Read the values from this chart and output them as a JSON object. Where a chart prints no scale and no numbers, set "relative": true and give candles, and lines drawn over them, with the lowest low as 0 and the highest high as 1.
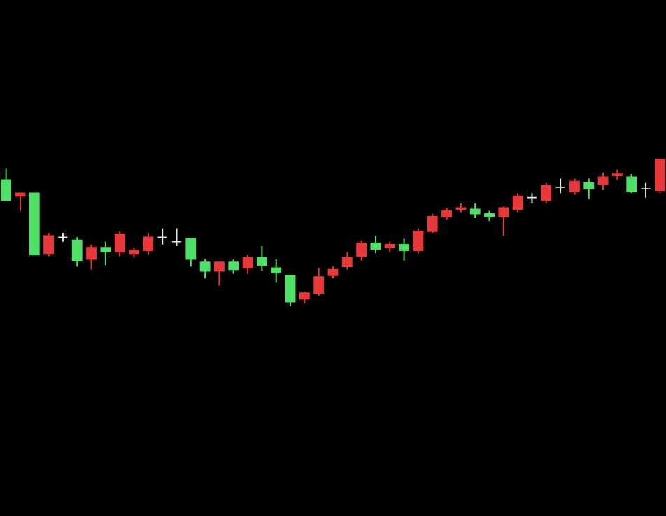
{
  "chart_data": {
    "type": "candlestick",
    "relative": true,
    "categories": [
      null,
      null,
      null,
      null,
      null,
      null,
      null,
      null,
      null,
      null,
      null,
      null,
      null,
      null,
      null,
      null,
      null,
      null,
      null,
      null,
      null,
      null,
      null,
      null,
      null,
      null,
      null,
      null,
      null,
      null,
      null,
      null,
      null,
      null,
      null,
      null,
      null,
      null,
      null,
      null,
      null,
      null,
      null,
      null,
      null,
      null,
      null
    ],
    "ohlc": [
      [
        0.86,
        0.94,
        0.72,
        0.72
      ],
      [
        0.75,
        0.77,
        0.65,
        0.77
      ],
      [
        0.77,
        0.77,
        0.35,
        0.35
      ],
      [
        0.36,
        0.5,
        0.34,
        0.48
      ],
      [
        0.47,
        0.5,
        0.44,
        0.47
      ],
      [
        0.45,
        0.47,
        0.27,
        0.31
      ],
      [
        0.32,
        0.42,
        0.25,
        0.4
      ],
      [
        0.4,
        0.44,
        0.28,
        0.37
      ],
      [
        0.37,
        0.51,
        0.34,
        0.49
      ],
      [
        0.36,
        0.4,
        0.33,
        0.38
      ],
      [
        0.38,
        0.5,
        0.35,
        0.47
      ],
      [
        0.47,
        0.53,
        0.42,
        0.47
      ],
      [
        0.44,
        0.53,
        0.41,
        0.44
      ],
      [
        0.46,
        0.46,
        0.27,
        0.32
      ],
      [
        0.3,
        0.32,
        0.19,
        0.24
      ],
      [
        0.24,
        0.3,
        0.14,
        0.3
      ],
      [
        0.3,
        0.32,
        0.22,
        0.25
      ],
      [
        0.26,
        0.35,
        0.22,
        0.33
      ],
      [
        0.33,
        0.41,
        0.24,
        0.28
      ],
      [
        0.26,
        0.32,
        0.16,
        0.23
      ],
      [
        0.21,
        0.21,
        0.0,
        0.03
      ],
      [
        0.05,
        0.1,
        0.02,
        0.09
      ],
      [
        0.09,
        0.26,
        0.07,
        0.2
      ],
      [
        0.21,
        0.27,
        0.19,
        0.25
      ],
      [
        0.27,
        0.37,
        0.25,
        0.33
      ],
      [
        0.34,
        0.45,
        0.31,
        0.43
      ],
      [
        0.43,
        0.48,
        0.36,
        0.39
      ],
      [
        0.4,
        0.44,
        0.37,
        0.42
      ],
      [
        0.42,
        0.46,
        0.31,
        0.38
      ],
      [
        0.38,
        0.53,
        0.36,
        0.51
      ],
      [
        0.51,
        0.63,
        0.5,
        0.61
      ],
      [
        0.61,
        0.67,
        0.59,
        0.65
      ],
      [
        0.66,
        0.7,
        0.64,
        0.67
      ],
      [
        0.66,
        0.7,
        0.6,
        0.63
      ],
      [
        0.63,
        0.65,
        0.58,
        0.61
      ],
      [
        0.61,
        0.68,
        0.48,
        0.67
      ],
      [
        0.66,
        0.77,
        0.64,
        0.75
      ],
      [
        0.74,
        0.77,
        0.7,
        0.74
      ],
      [
        0.72,
        0.84,
        0.7,
        0.82
      ],
      [
        0.81,
        0.87,
        0.77,
        0.81
      ],
      [
        0.78,
        0.87,
        0.76,
        0.85
      ],
      [
        0.84,
        0.87,
        0.73,
        0.8
      ],
      [
        0.83,
        0.91,
        0.79,
        0.88
      ],
      [
        0.89,
        0.93,
        0.86,
        0.9
      ],
      [
        0.88,
        0.9,
        0.77,
        0.78
      ],
      [
        0.8,
        0.84,
        0.74,
        0.8
      ],
      [
        0.79,
        1.0,
        0.77,
        1.0
      ]
    ],
    "colors": [
      "#4fe067",
      "#e8383a",
      "#4fe067",
      "#e8383a",
      "#e0f0e0",
      "#4fe067",
      "#e8383a",
      "#4fe067",
      "#e8383a",
      "#e8383a",
      "#e8383a",
      "#e0f0e0",
      "#e0f0e0",
      "#4fe067",
      "#4fe067",
      "#e8383a",
      "#4fe067",
      "#e8383a",
      "#4fe067",
      "#4fe067",
      "#4fe067",
      "#e8383a",
      "#e8383a",
      "#e8383a",
      "#e8383a",
      "#e8383a",
      "#4fe067",
      "#e8383a",
      "#4fe067",
      "#e8383a",
      "#e8383a",
      "#e8383a",
      "#e8383a",
      "#4fe067",
      "#4fe067",
      "#e8383a",
      "#e8383a",
      "#e0f0e0",
      "#e8383a",
      "#e0f0e0",
      "#e8383a",
      "#4fe067",
      "#e8383a",
      "#e8383a",
      "#4fe067",
      "#e0f0e0",
      "#e8383a"
    ]
  }
}
